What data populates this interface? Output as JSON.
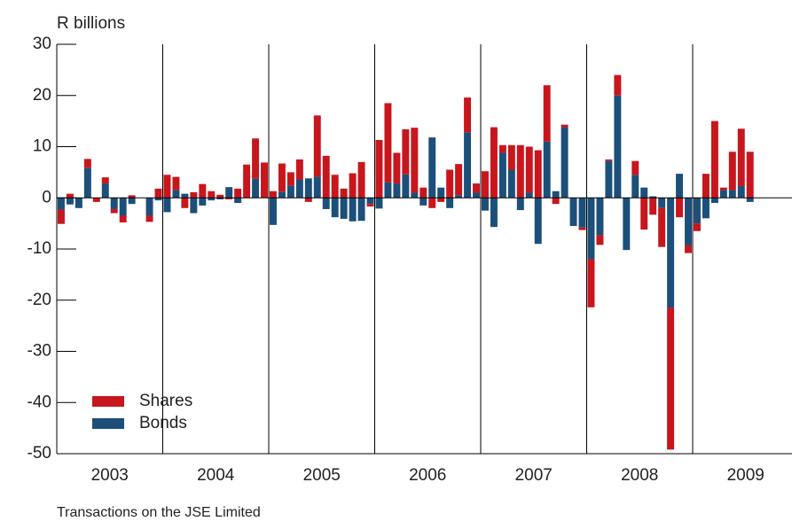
{
  "chart_data": {
    "type": "bar",
    "stacked": true,
    "y_label": "R billions",
    "caption": "Transactions on the JSE Limited",
    "categories": [
      null,
      null,
      null,
      null,
      null,
      null,
      "2003",
      null,
      null,
      null,
      null,
      null,
      null,
      null,
      null,
      null,
      null,
      null,
      "2004",
      null,
      null,
      null,
      null,
      null,
      null,
      null,
      null,
      null,
      null,
      null,
      "2005",
      null,
      null,
      null,
      null,
      null,
      null,
      null,
      null,
      null,
      null,
      null,
      "2006",
      null,
      null,
      null,
      null,
      null,
      null,
      null,
      null,
      null,
      null,
      null,
      "2007",
      null,
      null,
      null,
      null,
      null,
      null,
      null,
      null,
      null,
      null,
      null,
      "2008",
      null,
      null,
      null,
      null,
      null,
      null,
      null,
      null,
      null,
      null,
      null,
      "2009"
    ],
    "series": [
      {
        "name": "Shares",
        "color": "#c8161d",
        "values": [
          -2.8,
          0.8,
          0,
          1.8,
          -0.8,
          1.2,
          -0.8,
          -1.3,
          0.5,
          0,
          -1.2,
          1.8,
          4.5,
          2.6,
          -2,
          1.1,
          2.7,
          1.3,
          0.6,
          -0.3,
          1.8,
          6.5,
          7.8,
          6.9,
          1.3,
          5.5,
          2.6,
          3.9,
          -0.8,
          12,
          8.2,
          4.5,
          1.8,
          4.8,
          7,
          -0.5,
          11.3,
          15.5,
          6,
          8.8,
          12.7,
          2,
          -2,
          -0.8,
          5.5,
          6.1,
          6.8,
          1.8,
          5.2,
          13.8,
          1.5,
          4.8,
          10.3,
          9,
          9.3,
          11,
          -1.2,
          0.5,
          0,
          -0.5,
          -9.4,
          -1.9,
          0.3,
          4,
          0,
          2.7,
          -6.2,
          -3.3,
          -7.6,
          -27.7,
          -3.8,
          -1.5,
          -1.5,
          4.7,
          15,
          0.5,
          7.5,
          11.2,
          9
        ]
      },
      {
        "name": "Bonds",
        "color": "#1c4f7a",
        "values": [
          -2.3,
          -1.3,
          -2,
          5.8,
          0,
          2.8,
          -2.2,
          -3.5,
          -1.2,
          0,
          -3.5,
          -0.5,
          -2.8,
          1.5,
          0.8,
          -3,
          -1.5,
          -0.5,
          -0.3,
          2.1,
          -1,
          0,
          3.8,
          0,
          -5.3,
          1.2,
          2.4,
          3.6,
          3.8,
          4.1,
          -2.2,
          -3.8,
          -4.1,
          -4.6,
          -4.5,
          -1.2,
          -2.1,
          3,
          2.8,
          4.6,
          1,
          -1.5,
          11.8,
          2,
          -2,
          0.5,
          12.8,
          1,
          -2.5,
          -5.7,
          8.8,
          5.5,
          -2.4,
          1,
          -9,
          11,
          1.3,
          13.8,
          -5.5,
          -5.8,
          -12,
          -7.3,
          7.2,
          20,
          -10.2,
          4.5,
          2,
          0.3,
          -2,
          -21.5,
          4.7,
          -9.3,
          -5,
          -4,
          -1,
          1.5,
          1.5,
          2.3,
          -0.8
        ]
      }
    ],
    "ylim": [
      -50,
      30
    ],
    "yticks": [
      -50,
      -40,
      -30,
      -20,
      -10,
      0,
      10,
      20,
      30
    ],
    "legend": "lower left"
  }
}
